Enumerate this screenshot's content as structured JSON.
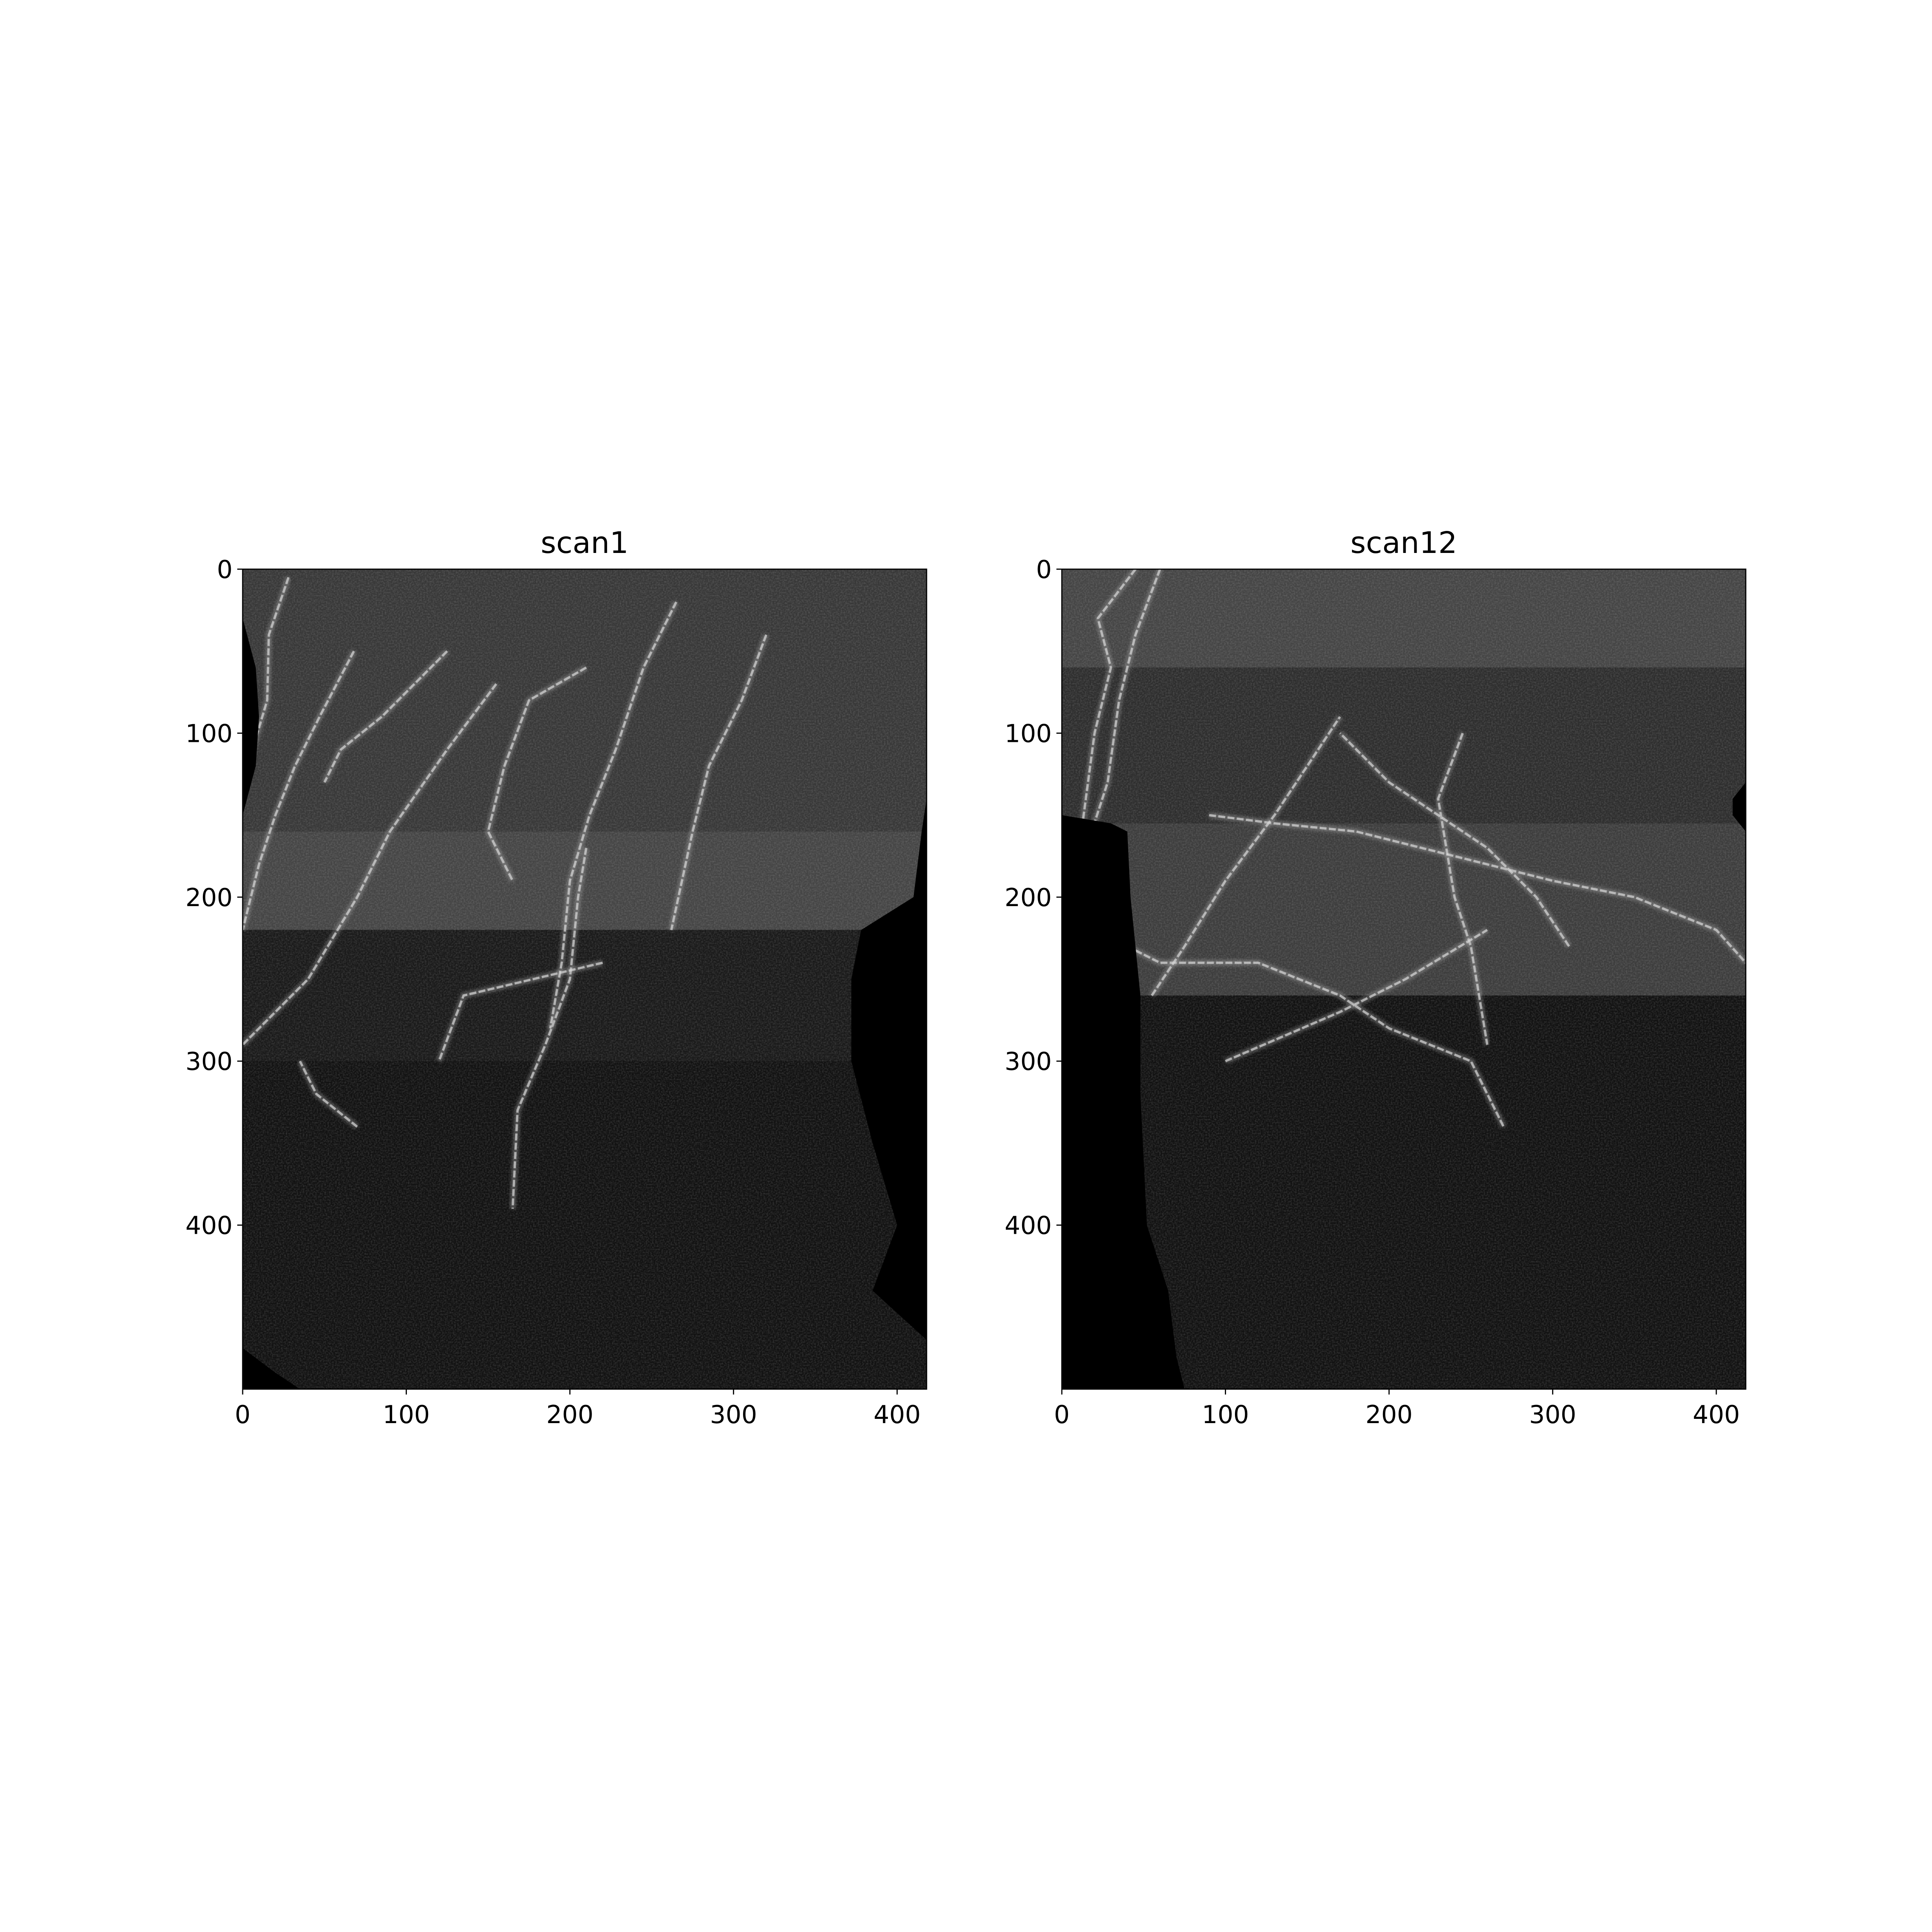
{
  "chart_data": [
    {
      "type": "heatmap",
      "title": "scan1",
      "x_ticks": [
        0,
        100,
        200,
        300,
        400
      ],
      "y_ticks": [
        0,
        100,
        200,
        300,
        400
      ],
      "xlim": [
        0,
        418
      ],
      "ylim": [
        500,
        0
      ],
      "colormap": "gray",
      "tissue_left_edge": [
        [
          0,
          0
        ],
        [
          30,
          0
        ],
        [
          60,
          8
        ],
        [
          90,
          10
        ],
        [
          120,
          8
        ],
        [
          150,
          0
        ],
        [
          460,
          0
        ],
        [
          475,
          0
        ],
        [
          490,
          20
        ],
        [
          500,
          35
        ]
      ],
      "tissue_right_edge": [
        [
          0,
          418
        ],
        [
          140,
          418
        ],
        [
          160,
          415
        ],
        [
          200,
          410
        ],
        [
          220,
          378
        ],
        [
          250,
          372
        ],
        [
          300,
          372
        ],
        [
          350,
          385
        ],
        [
          400,
          400
        ],
        [
          440,
          385
        ],
        [
          470,
          418
        ],
        [
          500,
          418
        ]
      ],
      "vessels": [
        [
          [
            5,
            28
          ],
          [
            40,
            16
          ],
          [
            80,
            15
          ],
          [
            110,
            6
          ],
          [
            140,
            0
          ]
        ],
        [
          [
            50,
            68
          ],
          [
            90,
            47
          ],
          [
            120,
            32
          ],
          [
            150,
            20
          ],
          [
            180,
            10
          ],
          [
            220,
            0
          ]
        ],
        [
          [
            70,
            155
          ],
          [
            110,
            125
          ],
          [
            160,
            90
          ],
          [
            200,
            70
          ],
          [
            250,
            40
          ],
          [
            290,
            0
          ]
        ],
        [
          [
            50,
            125
          ],
          [
            70,
            105
          ],
          [
            90,
            85
          ],
          [
            110,
            60
          ],
          [
            130,
            50
          ]
        ],
        [
          [
            60,
            210
          ],
          [
            80,
            175
          ],
          [
            120,
            160
          ],
          [
            160,
            150
          ],
          [
            190,
            165
          ]
        ],
        [
          [
            170,
            210
          ],
          [
            200,
            205
          ],
          [
            250,
            200
          ],
          [
            290,
            185
          ],
          [
            330,
            168
          ],
          [
            390,
            165
          ]
        ],
        [
          [
            240,
            220
          ],
          [
            260,
            135
          ],
          [
            300,
            120
          ]
        ],
        [
          [
            20,
            265
          ],
          [
            60,
            245
          ],
          [
            110,
            228
          ],
          [
            150,
            212
          ],
          [
            190,
            200
          ],
          [
            240,
            195
          ],
          [
            280,
            188
          ]
        ],
        [
          [
            40,
            320
          ],
          [
            80,
            305
          ],
          [
            120,
            285
          ],
          [
            160,
            275
          ],
          [
            220,
            262
          ]
        ],
        [
          [
            340,
            70
          ],
          [
            320,
            45
          ],
          [
            300,
            35
          ]
        ]
      ],
      "band_rows": [
        [
          0,
          160,
          0.22
        ],
        [
          160,
          220,
          0.27
        ],
        [
          220,
          300,
          0.1
        ],
        [
          300,
          500,
          0.07
        ]
      ]
    },
    {
      "type": "heatmap",
      "title": "scan12",
      "x_ticks": [
        0,
        100,
        200,
        300,
        400
      ],
      "y_ticks": [
        0,
        100,
        200,
        300,
        400
      ],
      "xlim": [
        0,
        418
      ],
      "ylim": [
        500,
        0
      ],
      "colormap": "gray",
      "tissue_left_edge": [
        [
          0,
          0
        ],
        [
          150,
          0
        ],
        [
          155,
          30
        ],
        [
          160,
          40
        ],
        [
          200,
          42
        ],
        [
          260,
          48
        ],
        [
          320,
          48
        ],
        [
          360,
          50
        ],
        [
          400,
          52
        ],
        [
          440,
          65
        ],
        [
          480,
          70
        ],
        [
          500,
          75
        ]
      ],
      "tissue_right_edge": [
        [
          0,
          418
        ],
        [
          130,
          418
        ],
        [
          140,
          410
        ],
        [
          150,
          410
        ],
        [
          160,
          418
        ],
        [
          500,
          418
        ]
      ],
      "vessels": [
        [
          [
            0,
            60
          ],
          [
            40,
            45
          ],
          [
            80,
            35
          ],
          [
            130,
            28
          ],
          [
            170,
            15
          ],
          [
            220,
            8
          ],
          [
            270,
            0
          ]
        ],
        [
          [
            0,
            45
          ],
          [
            30,
            22
          ],
          [
            60,
            30
          ],
          [
            100,
            20
          ],
          [
            160,
            12
          ],
          [
            210,
            5
          ],
          [
            300,
            0
          ]
        ],
        [
          [
            230,
            40
          ],
          [
            240,
            60
          ],
          [
            240,
            120
          ],
          [
            260,
            170
          ],
          [
            280,
            200
          ],
          [
            300,
            250
          ],
          [
            340,
            270
          ]
        ],
        [
          [
            100,
            245
          ],
          [
            140,
            230
          ],
          [
            200,
            240
          ],
          [
            230,
            250
          ],
          [
            290,
            260
          ]
        ],
        [
          [
            150,
            90
          ],
          [
            155,
            130
          ],
          [
            160,
            180
          ],
          [
            170,
            220
          ],
          [
            180,
            260
          ],
          [
            190,
            300
          ],
          [
            200,
            350
          ],
          [
            220,
            400
          ],
          [
            240,
            418
          ]
        ],
        [
          [
            260,
            55
          ],
          [
            245,
            65
          ],
          [
            230,
            75
          ],
          [
            190,
            100
          ],
          [
            150,
            130
          ],
          [
            120,
            150
          ],
          [
            90,
            170
          ]
        ],
        [
          [
            230,
            310
          ],
          [
            200,
            290
          ],
          [
            170,
            260
          ],
          [
            130,
            200
          ],
          [
            100,
            170
          ]
        ],
        [
          [
            300,
            100
          ],
          [
            270,
            170
          ],
          [
            250,
            210
          ],
          [
            220,
            260
          ]
        ]
      ],
      "band_rows": [
        [
          0,
          60,
          0.27
        ],
        [
          60,
          155,
          0.18
        ],
        [
          155,
          260,
          0.24
        ],
        [
          260,
          500,
          0.07
        ]
      ]
    }
  ]
}
